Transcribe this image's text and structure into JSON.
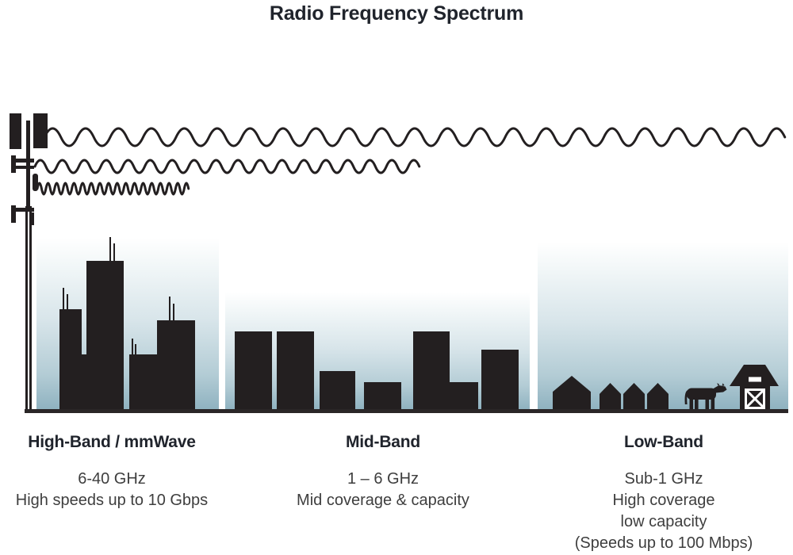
{
  "title": "Radio Frequency Spectrum",
  "colors": {
    "silhouette": "#231f20",
    "sky_top": "#ffffff",
    "sky_bottom": "#8fb2c0",
    "heading_text": "#20242c",
    "body_text": "#3e3e3e"
  },
  "tower": {
    "icon": "cell-tower-icon"
  },
  "waves": [
    {
      "icon": "long-wavelength-wave-icon",
      "band": "Low-Band"
    },
    {
      "icon": "medium-wavelength-wave-icon",
      "band": "Mid-Band"
    },
    {
      "icon": "short-wavelength-wave-icon",
      "band": "High-Band / mmWave"
    }
  ],
  "bands": [
    {
      "heading": "High-Band / mmWave",
      "details": [
        "6-40 GHz",
        "High speeds up to 10 Gbps"
      ],
      "scene": "city-skyscrapers"
    },
    {
      "heading": "Mid-Band",
      "details": [
        "1 – 6 GHz",
        "Mid coverage & capacity"
      ],
      "scene": "low-rise-buildings"
    },
    {
      "heading": "Low-Band",
      "details": [
        "Sub-1 GHz",
        "High coverage",
        "low capacity",
        "(Speeds up to 100 Mbps)"
      ],
      "scene": "rural-farm"
    }
  ]
}
